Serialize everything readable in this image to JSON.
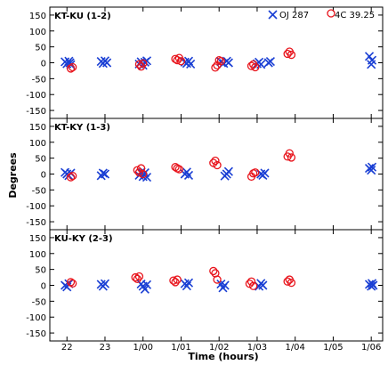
{
  "chart_data": {
    "type": "scatter",
    "xlabel": "Time (hours)",
    "ylabel": "Degrees",
    "xlim": [
      21.55,
      30.3
    ],
    "ylim": [
      -175,
      175
    ],
    "xticks": [
      22,
      23,
      24,
      25,
      26,
      27,
      28,
      29,
      30
    ],
    "xtick_labels": [
      "22",
      "23",
      "1/00",
      "1/01",
      "1/02",
      "1/03",
      "1/04",
      "1/05",
      "1/06"
    ],
    "yticks": [
      -150,
      -100,
      -50,
      0,
      50,
      100,
      150
    ],
    "ytick_labels": [
      "-150",
      "-100",
      "-50",
      "0",
      "50",
      "100",
      "150"
    ],
    "grid": false,
    "legend_position": "top-right",
    "series": [
      {
        "name": "OJ 287",
        "marker": "x",
        "color": "#1a3fd4"
      },
      {
        "name": "4C 39.25",
        "marker": "circle",
        "color": "#e8141c"
      }
    ],
    "panels": [
      {
        "label": "KT-KU (1-2)",
        "points": [
          [
            [
              21.95,
              3
            ],
            [
              22.0,
              -3
            ],
            [
              22.05,
              5
            ],
            [
              22.08,
              0
            ],
            [
              22.1,
              -6
            ],
            [
              22.9,
              4
            ],
            [
              22.95,
              -2
            ],
            [
              23.0,
              6
            ],
            [
              23.05,
              0
            ],
            [
              23.9,
              -4
            ],
            [
              23.95,
              3
            ],
            [
              24.0,
              -8
            ],
            [
              24.05,
              2
            ],
            [
              24.1,
              6
            ],
            [
              25.1,
              2
            ],
            [
              25.15,
              -2
            ],
            [
              25.2,
              5
            ],
            [
              25.25,
              -4
            ],
            [
              26.05,
              3
            ],
            [
              26.12,
              -2
            ],
            [
              26.2,
              5
            ],
            [
              26.25,
              0
            ],
            [
              27.0,
              -3
            ],
            [
              27.05,
              2
            ],
            [
              27.1,
              -5
            ],
            [
              27.3,
              0
            ],
            [
              27.35,
              4
            ],
            [
              29.95,
              20
            ],
            [
              30.0,
              -5
            ],
            [
              30.02,
              8
            ]
          ],
          [
            [
              22.1,
              -18
            ],
            [
              22.15,
              -14
            ],
            [
              23.9,
              -5
            ],
            [
              23.95,
              -12
            ],
            [
              24.0,
              -2
            ],
            [
              24.85,
              12
            ],
            [
              24.9,
              8
            ],
            [
              24.95,
              15
            ],
            [
              25.0,
              5
            ],
            [
              25.9,
              -15
            ],
            [
              25.95,
              -8
            ],
            [
              26.0,
              8
            ],
            [
              26.05,
              5
            ],
            [
              26.85,
              -10
            ],
            [
              26.9,
              -5
            ],
            [
              26.95,
              -14
            ],
            [
              27.8,
              28
            ],
            [
              27.85,
              35
            ],
            [
              27.9,
              25
            ]
          ]
        ]
      },
      {
        "label": "KT-KY (1-3)",
        "points": [
          [
            [
              21.95,
              5
            ],
            [
              22.0,
              0
            ],
            [
              22.05,
              -5
            ],
            [
              22.1,
              3
            ],
            [
              22.9,
              -5
            ],
            [
              22.95,
              3
            ],
            [
              23.0,
              0
            ],
            [
              23.9,
              -4
            ],
            [
              23.95,
              6
            ],
            [
              24.0,
              -8
            ],
            [
              24.05,
              4
            ],
            [
              24.1,
              -10
            ],
            [
              25.1,
              0
            ],
            [
              25.15,
              6
            ],
            [
              25.2,
              -4
            ],
            [
              26.15,
              -6
            ],
            [
              26.2,
              0
            ],
            [
              26.25,
              8
            ],
            [
              27.1,
              0
            ],
            [
              27.15,
              -4
            ],
            [
              27.2,
              3
            ],
            [
              29.95,
              18
            ],
            [
              30.0,
              12
            ],
            [
              30.02,
              22
            ]
          ],
          [
            [
              22.1,
              -10
            ],
            [
              22.15,
              -6
            ],
            [
              23.85,
              12
            ],
            [
              23.9,
              5
            ],
            [
              23.95,
              18
            ],
            [
              24.0,
              0
            ],
            [
              24.85,
              22
            ],
            [
              24.9,
              18
            ],
            [
              24.95,
              15
            ],
            [
              25.85,
              35
            ],
            [
              25.9,
              42
            ],
            [
              25.95,
              28
            ],
            [
              26.85,
              -8
            ],
            [
              26.9,
              2
            ],
            [
              26.95,
              5
            ],
            [
              27.8,
              55
            ],
            [
              27.85,
              65
            ],
            [
              27.9,
              52
            ]
          ]
        ]
      },
      {
        "label": "KU-KY (2-3)",
        "points": [
          [
            [
              21.95,
              0
            ],
            [
              22.0,
              -5
            ],
            [
              22.05,
              5
            ],
            [
              22.9,
              3
            ],
            [
              22.95,
              -3
            ],
            [
              23.0,
              5
            ],
            [
              23.95,
              4
            ],
            [
              24.0,
              -3
            ],
            [
              24.05,
              -12
            ],
            [
              24.1,
              2
            ],
            [
              25.1,
              5
            ],
            [
              25.15,
              -2
            ],
            [
              25.2,
              8
            ],
            [
              26.05,
              4
            ],
            [
              26.1,
              -8
            ],
            [
              26.15,
              0
            ],
            [
              27.05,
              -3
            ],
            [
              27.1,
              6
            ],
            [
              27.15,
              0
            ],
            [
              29.95,
              3
            ],
            [
              30.0,
              -3
            ],
            [
              30.02,
              6
            ],
            [
              30.05,
              0
            ]
          ],
          [
            [
              22.1,
              10
            ],
            [
              22.15,
              6
            ],
            [
              23.8,
              25
            ],
            [
              23.85,
              20
            ],
            [
              23.9,
              28
            ],
            [
              24.8,
              15
            ],
            [
              24.85,
              10
            ],
            [
              24.9,
              18
            ],
            [
              25.85,
              45
            ],
            [
              25.9,
              38
            ],
            [
              25.95,
              18
            ],
            [
              26.8,
              5
            ],
            [
              26.85,
              12
            ],
            [
              26.9,
              -2
            ],
            [
              27.8,
              12
            ],
            [
              27.85,
              18
            ],
            [
              27.9,
              8
            ]
          ]
        ]
      }
    ]
  }
}
